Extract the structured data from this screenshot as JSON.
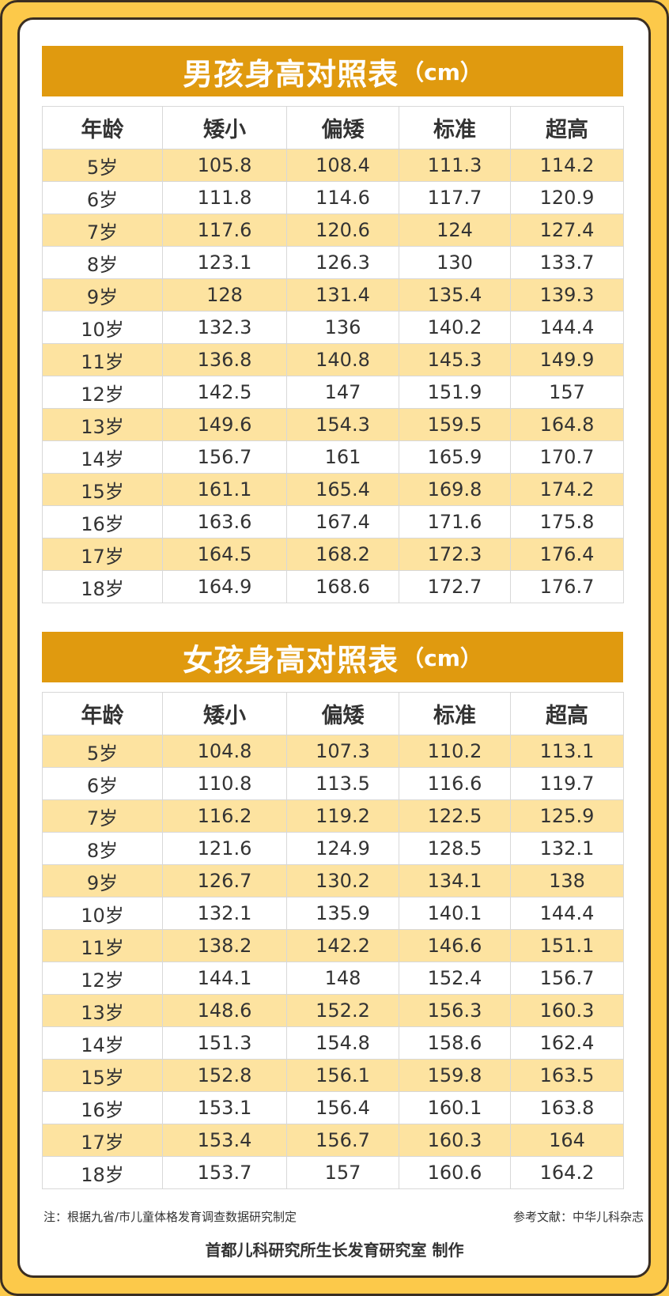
{
  "colors": {
    "background": "#fcc94a",
    "banner": "#e09a0f",
    "row_highlight": "#fde3a0"
  },
  "boys": {
    "title": "男孩身高对照表",
    "unit": "（cm）",
    "headers": [
      "年龄",
      "矮小",
      "偏矮",
      "标准",
      "超高"
    ],
    "rows": [
      [
        "5岁",
        "105.8",
        "108.4",
        "111.3",
        "114.2"
      ],
      [
        "6岁",
        "111.8",
        "114.6",
        "117.7",
        "120.9"
      ],
      [
        "7岁",
        "117.6",
        "120.6",
        "124",
        "127.4"
      ],
      [
        "8岁",
        "123.1",
        "126.3",
        "130",
        "133.7"
      ],
      [
        "9岁",
        "128",
        "131.4",
        "135.4",
        "139.3"
      ],
      [
        "10岁",
        "132.3",
        "136",
        "140.2",
        "144.4"
      ],
      [
        "11岁",
        "136.8",
        "140.8",
        "145.3",
        "149.9"
      ],
      [
        "12岁",
        "142.5",
        "147",
        "151.9",
        "157"
      ],
      [
        "13岁",
        "149.6",
        "154.3",
        "159.5",
        "164.8"
      ],
      [
        "14岁",
        "156.7",
        "161",
        "165.9",
        "170.7"
      ],
      [
        "15岁",
        "161.1",
        "165.4",
        "169.8",
        "174.2"
      ],
      [
        "16岁",
        "163.6",
        "167.4",
        "171.6",
        "175.8"
      ],
      [
        "17岁",
        "164.5",
        "168.2",
        "172.3",
        "176.4"
      ],
      [
        "18岁",
        "164.9",
        "168.6",
        "172.7",
        "176.7"
      ]
    ]
  },
  "girls": {
    "title": "女孩身高对照表",
    "unit": "（cm）",
    "headers": [
      "年龄",
      "矮小",
      "偏矮",
      "标准",
      "超高"
    ],
    "rows": [
      [
        "5岁",
        "104.8",
        "107.3",
        "110.2",
        "113.1"
      ],
      [
        "6岁",
        "110.8",
        "113.5",
        "116.6",
        "119.7"
      ],
      [
        "7岁",
        "116.2",
        "119.2",
        "122.5",
        "125.9"
      ],
      [
        "8岁",
        "121.6",
        "124.9",
        "128.5",
        "132.1"
      ],
      [
        "9岁",
        "126.7",
        "130.2",
        "134.1",
        "138"
      ],
      [
        "10岁",
        "132.1",
        "135.9",
        "140.1",
        "144.4"
      ],
      [
        "11岁",
        "138.2",
        "142.2",
        "146.6",
        "151.1"
      ],
      [
        "12岁",
        "144.1",
        "148",
        "152.4",
        "156.7"
      ],
      [
        "13岁",
        "148.6",
        "152.2",
        "156.3",
        "160.3"
      ],
      [
        "14岁",
        "151.3",
        "154.8",
        "158.6",
        "162.4"
      ],
      [
        "15岁",
        "152.8",
        "156.1",
        "159.8",
        "163.5"
      ],
      [
        "16岁",
        "153.1",
        "156.4",
        "160.1",
        "163.8"
      ],
      [
        "17岁",
        "153.4",
        "156.7",
        "160.3",
        "164"
      ],
      [
        "18岁",
        "153.7",
        "157",
        "160.6",
        "164.2"
      ]
    ]
  },
  "footer": {
    "note": "注：根据九省/市儿童体格发育调查数据研究制定",
    "reference": "参考文献：中华儿科杂志",
    "credit": "首都儿科研究所生长发育研究室 制作"
  }
}
